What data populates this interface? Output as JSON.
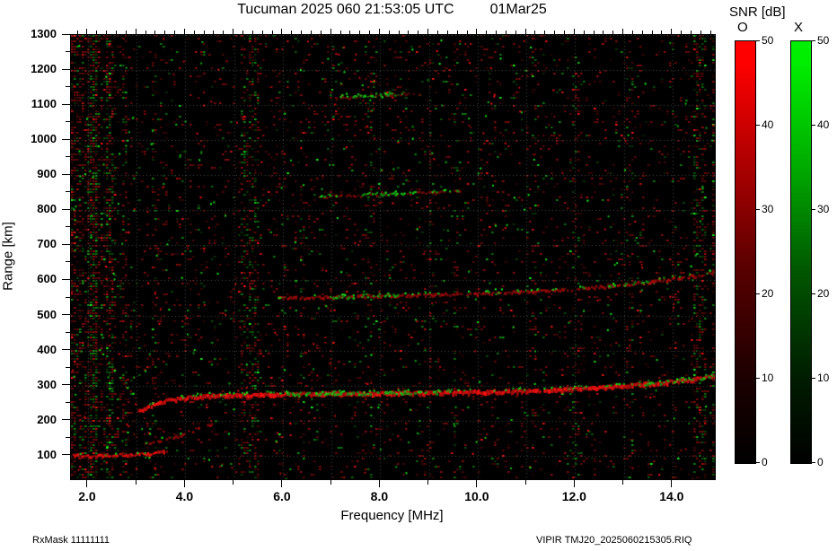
{
  "header": {
    "title": "Tucuman 2025 060 21:53:05 UTC",
    "date": "01Mar25"
  },
  "footer": {
    "left": "RxMask 11111111",
    "right": "VIPIR  TMJ20_2025060215305.RIQ"
  },
  "colorbar": {
    "title": "SNR [dB]",
    "o_label": "O",
    "x_label": "X",
    "ticks": [
      0,
      10,
      20,
      30,
      40,
      50
    ],
    "o_color": "#ff0000",
    "x_color": "#00dd00",
    "min": 0,
    "max": 50
  },
  "chart_data": {
    "type": "heatmap",
    "title": "Tucuman 2025 060 21:53:05 UTC 01Mar25",
    "xlabel": "Frequency [MHz]",
    "ylabel": "Range [km]",
    "zlabel": "SNR [dB]",
    "x_range": [
      1.65,
      14.87
    ],
    "y_range": [
      33,
      1300
    ],
    "x_major_ticks": [
      2,
      4,
      6,
      8,
      10,
      12,
      14
    ],
    "x_major_labels": [
      "2.0",
      "4.0",
      "6.0",
      "8.0",
      "10.0",
      "12.0",
      "14.0"
    ],
    "x_minor_ticks": [
      3,
      5,
      7,
      9,
      11,
      13
    ],
    "y_major_ticks": [
      100,
      200,
      300,
      400,
      500,
      600,
      700,
      800,
      900,
      1000,
      1100,
      1200,
      1300
    ],
    "snr_range": [
      0,
      50
    ],
    "polarizations": [
      {
        "name": "O",
        "color": "#ff0000"
      },
      {
        "name": "X",
        "color": "#00dd00"
      }
    ],
    "background": "#000000",
    "grid": {
      "h_start": 100,
      "h_step": 100,
      "v_step": 1,
      "color": "rgba(150,170,150,0.45)"
    },
    "noise": {
      "base": 0.09,
      "green_frac": 0.2,
      "low_freq_boost": 0.3,
      "bright": 380
    },
    "rfi_bands": [
      {
        "f": 2.1,
        "width": 0.18,
        "intensity": 0.45,
        "green": 0.25
      },
      {
        "f": 2.42,
        "width": 0.15,
        "intensity": 0.35,
        "green": 0.2
      },
      {
        "f": 2.75,
        "width": 0.1,
        "intensity": 0.2,
        "green": 0.15
      },
      {
        "f": 3.35,
        "width": 0.1,
        "intensity": 0.15,
        "green": 0.1
      },
      {
        "f": 5.3,
        "width": 0.35,
        "intensity": 0.3,
        "green": 0.18
      },
      {
        "f": 6.4,
        "width": 0.12,
        "intensity": 0.12,
        "green": 0.1
      },
      {
        "f": 7.75,
        "width": 0.2,
        "intensity": 0.12,
        "green": 0.15
      },
      {
        "f": 9.05,
        "width": 0.1,
        "intensity": 0.1,
        "green": 0.08
      },
      {
        "f": 9.55,
        "width": 0.12,
        "intensity": 0.12,
        "green": 0.08
      },
      {
        "f": 11.15,
        "width": 0.1,
        "intensity": 0.1,
        "green": 0.08
      },
      {
        "f": 12.0,
        "width": 0.15,
        "intensity": 0.15,
        "green": 0.1
      },
      {
        "f": 13.1,
        "width": 0.12,
        "intensity": 0.12,
        "green": 0.1
      },
      {
        "f": 14.55,
        "width": 0.3,
        "intensity": 0.3,
        "green": 0.12
      },
      {
        "f": 14.85,
        "width": 0.1,
        "intensity": 0.4,
        "green": 0.1
      }
    ],
    "traces": [
      {
        "name": "E-layer-echo",
        "color": "red",
        "points": [
          [
            1.68,
            100
          ],
          [
            2.2,
            99
          ],
          [
            2.8,
            101
          ],
          [
            3.3,
            104
          ],
          [
            3.6,
            112
          ]
        ],
        "thickness": 3,
        "density": 0.8,
        "intensity": 0.95,
        "green": 0.08
      },
      {
        "name": "E-oblique-echo",
        "color": "red",
        "points": [
          [
            3.15,
            130
          ],
          [
            3.9,
            158
          ],
          [
            4.65,
            196
          ]
        ],
        "thickness": 2.5,
        "density": 0.45,
        "intensity": 0.6,
        "green": 0.05
      },
      {
        "name": "oblique-spread",
        "color": "red",
        "points": [
          [
            2.05,
            428
          ],
          [
            2.5,
            345
          ],
          [
            3.0,
            254
          ]
        ],
        "thickness": 2,
        "density": 0.3,
        "intensity": 0.45,
        "green": 0.3
      },
      {
        "name": "F-trace-leading-edge",
        "color": "red",
        "points": [
          [
            3.02,
            224
          ],
          [
            3.35,
            246
          ],
          [
            3.7,
            258
          ],
          [
            4.3,
            268
          ]
        ],
        "thickness": 4,
        "density": 0.95,
        "intensity": 1,
        "green": 0.15
      },
      {
        "name": "F-trace-O-mode",
        "color": "red",
        "points": [
          [
            4.3,
            268
          ],
          [
            5.5,
            272
          ],
          [
            7,
            275
          ],
          [
            8.5,
            277
          ],
          [
            10,
            280
          ],
          [
            11,
            283
          ],
          [
            11.8,
            287
          ],
          [
            12.6,
            293
          ],
          [
            13.4,
            302
          ],
          [
            14.2,
            312
          ],
          [
            14.87,
            324
          ]
        ],
        "thickness": 4.5,
        "density": 0.97,
        "intensity": 1,
        "green": 0.3
      },
      {
        "name": "F-trace-X-mode",
        "color": "green",
        "points": [
          [
            5.9,
            274
          ],
          [
            7.4,
            276
          ],
          [
            9.2,
            279
          ]
        ],
        "thickness": 3,
        "density": 0.4,
        "intensity": 0.85,
        "green": 0
      },
      {
        "name": "F-trace-X-mode-right",
        "color": "green",
        "points": [
          [
            13.3,
            301
          ],
          [
            14.8,
            322
          ]
        ],
        "thickness": 2.5,
        "density": 0.3,
        "intensity": 0.8,
        "green": 0
      },
      {
        "name": "second-hop-F",
        "color": "red",
        "points": [
          [
            5.9,
            548
          ],
          [
            7.2,
            552
          ],
          [
            8.5,
            556
          ],
          [
            9.8,
            560
          ],
          [
            11,
            566
          ],
          [
            12,
            574
          ],
          [
            12.8,
            584
          ],
          [
            13.6,
            596
          ],
          [
            14.4,
            611
          ],
          [
            14.87,
            621
          ]
        ],
        "thickness": 3,
        "density": 0.75,
        "intensity": 0.7,
        "green": 0.18
      },
      {
        "name": "second-hop-X-a",
        "color": "green",
        "points": [
          [
            6.9,
            551
          ],
          [
            8.4,
            555
          ]
        ],
        "thickness": 2.5,
        "density": 0.3,
        "intensity": 0.8,
        "green": 0
      },
      {
        "name": "second-hop-X-b",
        "color": "green",
        "points": [
          [
            12.5,
            581
          ],
          [
            13.5,
            595
          ]
        ],
        "thickness": 2.5,
        "density": 0.28,
        "intensity": 0.75,
        "green": 0
      },
      {
        "name": "third-hop-F",
        "color": "red",
        "points": [
          [
            6.7,
            837
          ],
          [
            7.8,
            843
          ],
          [
            9.0,
            849
          ],
          [
            9.7,
            853
          ]
        ],
        "thickness": 2.5,
        "density": 0.5,
        "intensity": 0.55,
        "green": 0.3
      },
      {
        "name": "third-hop-X",
        "color": "green",
        "points": [
          [
            7.5,
            841
          ],
          [
            8.5,
            847
          ]
        ],
        "thickness": 2.5,
        "density": 0.3,
        "intensity": 0.75,
        "green": 0
      },
      {
        "name": "fourth-hop-F",
        "color": "red",
        "points": [
          [
            7.0,
            1119
          ],
          [
            7.9,
            1126
          ],
          [
            8.8,
            1132
          ]
        ],
        "thickness": 2.5,
        "density": 0.45,
        "intensity": 0.5,
        "green": 0.3
      },
      {
        "name": "fourth-hop-X",
        "color": "green",
        "points": [
          [
            7.4,
            1121
          ],
          [
            8.3,
            1129
          ]
        ],
        "thickness": 2.5,
        "density": 0.35,
        "intensity": 0.8,
        "green": 0
      }
    ]
  }
}
